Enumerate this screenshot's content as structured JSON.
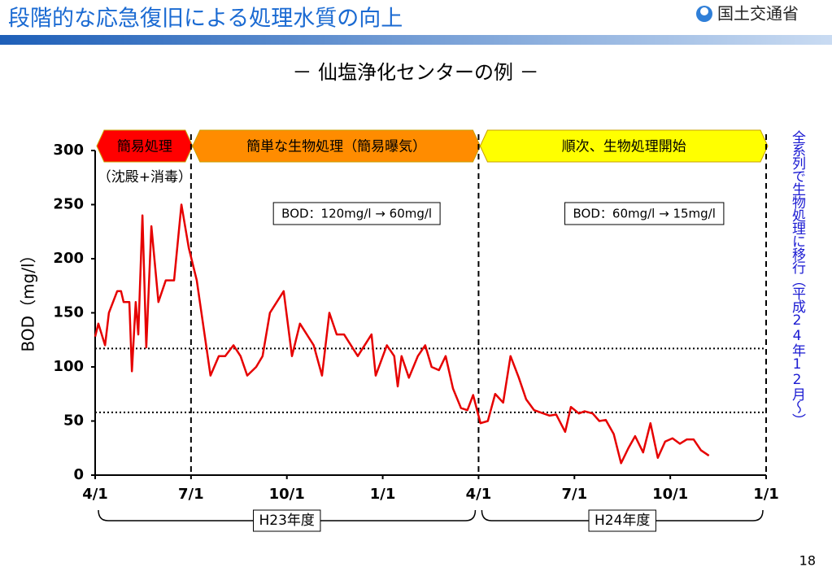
{
  "header": {
    "title": "段階的な応急復旧による処理水質の向上",
    "logo": "国土交通省"
  },
  "page_number": "18",
  "chart_data": {
    "type": "line",
    "title": "－ 仙塩浄化センターの例 －",
    "y_label": "BOD（mg/l）",
    "color": "#e60000",
    "x": [
      0,
      0.1,
      0.31,
      0.43,
      0.69,
      0.81,
      0.89,
      1.07,
      1.15,
      1.27,
      1.35,
      1.48,
      1.6,
      1.76,
      1.98,
      2.21,
      2.47,
      2.7,
      2.93,
      3.18,
      3.61,
      3.87,
      4.07,
      4.33,
      4.55,
      4.76,
      5.04,
      5.24,
      5.47,
      5.9,
      6.16,
      6.41,
      6.84,
      7.1,
      7.33,
      7.56,
      7.79,
      8.22,
      8.65,
      8.78,
      9.13,
      9.36,
      9.47,
      9.59,
      9.82,
      10.1,
      10.33,
      10.53,
      10.76,
      10.97,
      11.2,
      11.45,
      11.65,
      11.83,
      12.06,
      12.29,
      12.52,
      12.77,
      13,
      13.26,
      13.49,
      13.74,
      14.22,
      14.43,
      14.71,
      14.89,
      15.14,
      15.32,
      15.57,
      15.78,
      15.98,
      16.23,
      16.46,
      16.69,
      16.9,
      17.15,
      17.38,
      17.61,
      17.84,
      18.07,
      18.3,
      18.52,
      18.73,
      18.96,
      19.21
    ],
    "values": [
      128,
      140,
      120,
      150,
      170,
      170,
      160,
      160,
      96,
      160,
      130,
      240,
      118,
      230,
      160,
      180,
      180,
      250,
      210,
      180,
      92,
      110,
      110,
      120,
      110,
      92,
      100,
      110,
      150,
      170,
      110,
      140,
      120,
      92,
      150,
      130,
      130,
      110,
      130,
      92,
      120,
      110,
      82,
      110,
      90,
      110,
      120,
      100,
      97,
      110,
      80,
      62,
      60,
      74,
      48,
      50,
      75,
      67,
      110,
      90,
      70,
      60,
      55,
      56,
      40,
      63,
      57,
      59,
      57,
      50,
      51,
      38,
      11,
      25,
      36,
      21,
      48,
      16,
      31,
      34,
      29,
      33,
      33,
      23,
      18
    ],
    "xlim": [
      0,
      21
    ],
    "xticks": [
      {
        "value": 0,
        "label": "4/1"
      },
      {
        "value": 3,
        "label": "7/1"
      },
      {
        "value": 6,
        "label": "10/1"
      },
      {
        "value": 9,
        "label": "1/1"
      },
      {
        "value": 12,
        "label": "4/1"
      },
      {
        "value": 15,
        "label": "7/1"
      },
      {
        "value": 18,
        "label": "10/1"
      },
      {
        "value": 21,
        "label": "1/1"
      }
    ],
    "ylim": [
      0,
      300
    ],
    "yticks": [
      0,
      50,
      100,
      150,
      200,
      250,
      300
    ],
    "reference_lines": [
      117,
      58
    ],
    "phases": [
      {
        "label": "簡易処理",
        "note": "（沈殿+消毒）",
        "start": 0,
        "end": 3,
        "color": "#ff0000"
      },
      {
        "label": "簡単な生物処理（簡易曝気）",
        "start": 3,
        "end": 12,
        "color": "#ff8c00",
        "annotation": "BOD：120mg/l → 60mg/l"
      },
      {
        "label": "順次、生物処理開始",
        "start": 12,
        "end": 21,
        "color": "#ffff00",
        "annotation": "BOD：60mg/l → 15mg/l"
      }
    ],
    "side_note": "全系列で生物処理に移行（平成24年12月～）",
    "periods": [
      {
        "label": "H23年度",
        "start": 0,
        "end": 12
      },
      {
        "label": "H24年度",
        "start": 12,
        "end": 21
      }
    ]
  }
}
